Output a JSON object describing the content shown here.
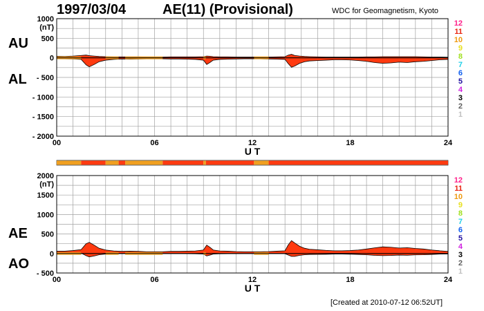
{
  "header": {
    "date": "1997/03/04",
    "title": "AE(11) (Provisional)",
    "source": "WDC for Geomagnetism, Kyoto"
  },
  "footer": {
    "created": "[Created at 2010-07-12 06:52UT]"
  },
  "colors": {
    "fill_main": "#ff3a10",
    "fill_alt": "#f0a020",
    "grid": "#a0a0a0",
    "outline": "#000000"
  },
  "legend_levels": [
    {
      "label": "12",
      "color": "#ff1f8a"
    },
    {
      "label": "11",
      "color": "#e8230f"
    },
    {
      "label": "10",
      "color": "#ee9a10"
    },
    {
      "label": "9",
      "color": "#e8e020"
    },
    {
      "label": "8",
      "color": "#a0e020"
    },
    {
      "label": "7",
      "color": "#20d0e8"
    },
    {
      "label": "6",
      "color": "#1060f0"
    },
    {
      "label": "5",
      "color": "#2010a0"
    },
    {
      "label": "4",
      "color": "#d020e0"
    },
    {
      "label": "3",
      "color": "#000000"
    },
    {
      "label": "2",
      "color": "#606060"
    },
    {
      "label": "1",
      "color": "#c0c0c0"
    }
  ],
  "chart_data": [
    {
      "type": "area",
      "side_labels": [
        "AU",
        "AL"
      ],
      "yunit": "(nT)",
      "ylim": [
        -2000,
        1000
      ],
      "yticks": [
        1000,
        500,
        0,
        -500,
        -1000,
        -1500,
        -2000
      ],
      "ytick_labels": [
        "1000",
        "500",
        "0",
        "- 500",
        "- 1000",
        "- 1500",
        "- 2000"
      ],
      "xlabel": "U T",
      "xlim": [
        0,
        24
      ],
      "xticks": [
        0,
        6,
        12,
        18,
        24
      ],
      "xtick_labels": [
        "00",
        "06",
        "12",
        "18",
        "24"
      ],
      "grid": true,
      "x": [
        0,
        0.5,
        1,
        1.5,
        1.8,
        2,
        2.3,
        2.6,
        3,
        3.5,
        4,
        4.5,
        5,
        5.5,
        6,
        6.5,
        7,
        7.5,
        8,
        8.5,
        9,
        9.2,
        9.4,
        9.6,
        10,
        10.5,
        11,
        11.5,
        12,
        12.5,
        13,
        13.5,
        14,
        14.2,
        14.4,
        14.6,
        14.9,
        15.2,
        15.5,
        16,
        16.5,
        17,
        17.5,
        18,
        18.5,
        19,
        19.5,
        20,
        20.5,
        21,
        21.5,
        22,
        22.5,
        23,
        23.5,
        24
      ],
      "series": [
        {
          "name": "AU",
          "values": [
            40,
            35,
            45,
            60,
            70,
            55,
            45,
            35,
            30,
            25,
            25,
            25,
            25,
            20,
            20,
            20,
            25,
            25,
            25,
            25,
            30,
            45,
            40,
            30,
            25,
            25,
            20,
            20,
            20,
            20,
            20,
            25,
            30,
            70,
            90,
            60,
            45,
            35,
            30,
            25,
            20,
            20,
            20,
            20,
            20,
            25,
            25,
            30,
            30,
            30,
            30,
            30,
            25,
            20,
            20,
            15
          ]
        },
        {
          "name": "AL",
          "values": [
            -20,
            -25,
            -30,
            -40,
            -180,
            -230,
            -170,
            -100,
            -60,
            -40,
            -30,
            -35,
            -30,
            -25,
            -25,
            -25,
            -30,
            -30,
            -35,
            -40,
            -60,
            -170,
            -120,
            -60,
            -40,
            -35,
            -30,
            -25,
            -25,
            -25,
            -30,
            -35,
            -40,
            -150,
            -240,
            -210,
            -140,
            -100,
            -80,
            -70,
            -60,
            -50,
            -50,
            -55,
            -70,
            -90,
            -120,
            -140,
            -130,
            -110,
            -120,
            -100,
            -90,
            -70,
            -50,
            -40
          ]
        }
      ]
    },
    {
      "type": "area",
      "side_labels": [
        "AE",
        "AO"
      ],
      "yunit": "(nT)",
      "ylim": [
        -500,
        2000
      ],
      "yticks": [
        2000,
        1500,
        1000,
        500,
        0,
        -500
      ],
      "ytick_labels": [
        "2000",
        "1500",
        "1000",
        "500",
        "0",
        "- 500"
      ],
      "xlabel": "U T",
      "xlim": [
        0,
        24
      ],
      "xticks": [
        0,
        6,
        12,
        18,
        24
      ],
      "xtick_labels": [
        "00",
        "06",
        "12",
        "18",
        "24"
      ],
      "grid": true,
      "x": [
        0,
        0.5,
        1,
        1.5,
        1.8,
        2,
        2.3,
        2.6,
        3,
        3.5,
        4,
        4.5,
        5,
        5.5,
        6,
        6.5,
        7,
        7.5,
        8,
        8.5,
        9,
        9.2,
        9.4,
        9.6,
        10,
        10.5,
        11,
        11.5,
        12,
        12.5,
        13,
        13.5,
        14,
        14.2,
        14.4,
        14.6,
        14.9,
        15.2,
        15.5,
        16,
        16.5,
        17,
        17.5,
        18,
        18.5,
        19,
        19.5,
        20,
        20.5,
        21,
        21.5,
        22,
        22.5,
        23,
        23.5,
        24
      ],
      "series": [
        {
          "name": "AE",
          "values": [
            60,
            60,
            75,
            100,
            250,
            285,
            215,
            135,
            90,
            65,
            55,
            60,
            55,
            45,
            45,
            45,
            55,
            55,
            60,
            65,
            90,
            215,
            160,
            90,
            65,
            60,
            50,
            45,
            45,
            45,
            50,
            60,
            70,
            220,
            330,
            270,
            185,
            135,
            110,
            95,
            80,
            70,
            70,
            75,
            90,
            115,
            145,
            170,
            160,
            140,
            150,
            130,
            115,
            90,
            70,
            55
          ]
        },
        {
          "name": "AO",
          "values": [
            10,
            5,
            8,
            10,
            -55,
            -88,
            -63,
            -33,
            -15,
            -8,
            -3,
            -5,
            -3,
            -3,
            -3,
            -3,
            -3,
            -3,
            -5,
            -8,
            -15,
            -63,
            -40,
            -15,
            -8,
            -5,
            -5,
            -3,
            -3,
            -3,
            -5,
            -5,
            -5,
            -40,
            -75,
            -75,
            -48,
            -33,
            -25,
            -23,
            -20,
            -15,
            -15,
            -18,
            -25,
            -33,
            -48,
            -55,
            -50,
            -40,
            -45,
            -35,
            -33,
            -25,
            -15,
            -13
          ]
        }
      ]
    }
  ],
  "activity_bar": {
    "segments": [
      {
        "start": 0,
        "end": 1.5,
        "color": "#f0a020"
      },
      {
        "start": 1.5,
        "end": 3.0,
        "color": "#ff3a10"
      },
      {
        "start": 3.0,
        "end": 3.8,
        "color": "#f0a020"
      },
      {
        "start": 3.8,
        "end": 4.2,
        "color": "#ff3a10"
      },
      {
        "start": 4.2,
        "end": 6.5,
        "color": "#f0a020"
      },
      {
        "start": 6.5,
        "end": 9.0,
        "color": "#ff3a10"
      },
      {
        "start": 9.0,
        "end": 9.15,
        "color": "#f0a020"
      },
      {
        "start": 9.15,
        "end": 12.1,
        "color": "#ff3a10"
      },
      {
        "start": 12.1,
        "end": 13.0,
        "color": "#f0a020"
      },
      {
        "start": 13.0,
        "end": 24,
        "color": "#ff3a10"
      }
    ]
  }
}
